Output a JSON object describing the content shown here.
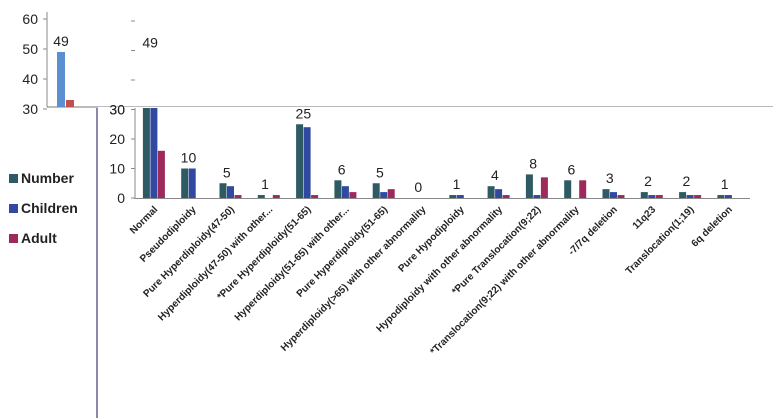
{
  "chart_data": {
    "type": "bar",
    "categories": [
      "Normal",
      "Pseudodiploidy",
      "Pure Hyperdiploidy(47-50)",
      "Hyperdiploidy(47-50) with other...",
      "*Pure Hyperdiploidy(51-65)",
      "Hyperdiploidy(51-65) with other...",
      "Pure Hyperdiploidy(51-65)",
      "Hyperdiploidy(>65) with other abnormality",
      "Pure Hypodiploidy",
      "Hypodiploidy with other  abnormality",
      "*Pure Translocation(9;22)",
      "*Translocation(9;22) with other abnormality",
      "-7/7q deletion",
      "11q23",
      "Translocation(1;19)",
      "6q deletion"
    ],
    "series": [
      {
        "name": "Number",
        "color": "#2e5a63",
        "values": [
          49,
          10,
          5,
          1,
          25,
          6,
          5,
          0,
          1,
          4,
          8,
          6,
          3,
          2,
          2,
          1
        ]
      },
      {
        "name": "Children",
        "color": "#2f4aa0",
        "values": [
          49,
          10,
          4,
          0,
          24,
          4,
          2,
          0,
          1,
          3,
          1,
          0,
          2,
          1,
          1,
          1
        ]
      },
      {
        "name": "Adult",
        "color": "#9e2a5c",
        "values": [
          16,
          0,
          1,
          1,
          1,
          2,
          3,
          0,
          0,
          1,
          7,
          6,
          1,
          1,
          1,
          0
        ]
      }
    ],
    "data_labels": [
      "49",
      "10",
      "5",
      "1",
      "25",
      "6",
      "5",
      "0",
      "1",
      "4",
      "8",
      "6",
      "3",
      "2",
      "2",
      "1"
    ],
    "ylim": [
      0,
      60
    ],
    "yticks": [
      "0",
      "10",
      "20",
      "30",
      "40",
      "50",
      "60"
    ],
    "grid": false,
    "legend_position": "left",
    "background_remnant": {
      "axis_ticks": [
        "60",
        "50",
        "40",
        "30"
      ],
      "data_label": "49",
      "bar_values": [
        49,
        33
      ],
      "bar_colors": [
        "#5b8fd0",
        "#c0504d"
      ]
    }
  }
}
